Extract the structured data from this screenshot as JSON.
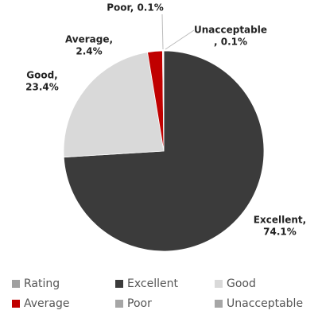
{
  "chart_data": {
    "type": "pie",
    "categories": [
      "Excellent",
      "Good",
      "Average",
      "Poor",
      "Unacceptable"
    ],
    "values": [
      74.1,
      23.4,
      2.4,
      0.1,
      0.1
    ],
    "value_labels": [
      [
        "Excellent,",
        "74.1%"
      ],
      [
        "Good,",
        "23.4%"
      ],
      [
        "Average,",
        "2.4%"
      ],
      [
        "Poor, 0.1%"
      ],
      [
        "Unacceptable",
        ", 0.1%"
      ]
    ],
    "colors": [
      "#3b3b3b",
      "#d9d9d9",
      "#c00000",
      "#a6a6a6",
      "#a6a6a6"
    ],
    "legend_title": "Rating",
    "legend_title_color": "#a0a0a0",
    "legend": "bottom"
  }
}
